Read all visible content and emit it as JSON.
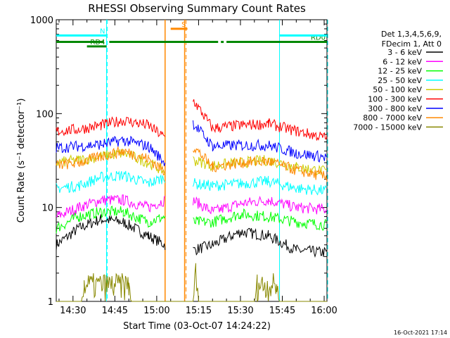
{
  "chart_data": {
    "type": "line",
    "title": "RHESSI Observing Summary Count Rates",
    "xlabel": "Start Time (03-Oct-07 14:24:22)",
    "ylabel": "Count Rate (s⁻¹ detector⁻¹)",
    "yscale": "log",
    "ylim": [
      1,
      1000
    ],
    "xlim": [
      "14:24",
      "16:01"
    ],
    "x_ticks": [
      "14:30",
      "14:45",
      "15:00",
      "15:15",
      "15:30",
      "15:45",
      "16:00"
    ],
    "y_ticks": [
      "1",
      "10",
      "100",
      "1000"
    ],
    "legend_header": [
      "Det 1,3,4,5,6,9,",
      "FDecim 1, Att 0"
    ],
    "legend_position": "right",
    "timestamp": "16-Oct-2021 17:14",
    "series": [
      {
        "name": "3 - 6 keV",
        "color": "#000000",
        "key": [
          [
            "14:24",
            4
          ],
          [
            "14:32",
            6
          ],
          [
            "14:40",
            7.5
          ],
          [
            "14:48",
            7
          ],
          [
            "14:57",
            5
          ],
          [
            "15:03",
            4
          ],
          [
            "15:10",
            null
          ],
          [
            "15:13",
            3.5
          ],
          [
            "15:20",
            4
          ],
          [
            "15:30",
            5.5
          ],
          [
            "15:40",
            5
          ],
          [
            "15:50",
            3.5
          ],
          [
            "16:01",
            3.3
          ]
        ]
      },
      {
        "name": "6 - 12 keV",
        "color": "#ff00ff",
        "key": [
          [
            "14:24",
            8
          ],
          [
            "14:32",
            10
          ],
          [
            "14:40",
            12
          ],
          [
            "14:48",
            12
          ],
          [
            "14:57",
            10
          ],
          [
            "15:03",
            12
          ],
          [
            "15:10",
            null
          ],
          [
            "15:13",
            12
          ],
          [
            "15:20",
            9
          ],
          [
            "15:30",
            11
          ],
          [
            "15:40",
            12
          ],
          [
            "15:50",
            10
          ],
          [
            "16:01",
            9.5
          ]
        ]
      },
      {
        "name": "12 - 25 keV",
        "color": "#00ff00",
        "key": [
          [
            "14:24",
            6
          ],
          [
            "14:32",
            8
          ],
          [
            "14:40",
            9
          ],
          [
            "14:48",
            9
          ],
          [
            "14:57",
            7
          ],
          [
            "15:03",
            8
          ],
          [
            "15:10",
            null
          ],
          [
            "15:13",
            7
          ],
          [
            "15:20",
            7
          ],
          [
            "15:30",
            8.5
          ],
          [
            "15:40",
            8
          ],
          [
            "15:50",
            7
          ],
          [
            "16:01",
            6.5
          ]
        ]
      },
      {
        "name": "25 - 50 keV",
        "color": "#00ffff",
        "key": [
          [
            "14:24",
            16
          ],
          [
            "14:32",
            17
          ],
          [
            "14:40",
            21
          ],
          [
            "14:48",
            22
          ],
          [
            "14:57",
            18
          ],
          [
            "15:03",
            21
          ],
          [
            "15:10",
            null
          ],
          [
            "15:13",
            18
          ],
          [
            "15:20",
            17
          ],
          [
            "15:30",
            18
          ],
          [
            "15:40",
            19
          ],
          [
            "15:50",
            16
          ],
          [
            "16:01",
            15
          ]
        ]
      },
      {
        "name": "50 - 100 keV",
        "color": "#cccc00",
        "key": [
          [
            "14:24",
            30
          ],
          [
            "14:32",
            32
          ],
          [
            "14:40",
            35
          ],
          [
            "14:48",
            38
          ],
          [
            "14:57",
            30
          ],
          [
            "15:03",
            24
          ],
          [
            "15:10",
            null
          ],
          [
            "15:13",
            32
          ],
          [
            "15:20",
            28
          ],
          [
            "15:30",
            30
          ],
          [
            "15:40",
            32
          ],
          [
            "15:50",
            27
          ],
          [
            "16:01",
            24
          ]
        ]
      },
      {
        "name": "100 - 300 keV",
        "color": "#ff0000",
        "key": [
          [
            "14:24",
            65
          ],
          [
            "14:32",
            68
          ],
          [
            "14:40",
            75
          ],
          [
            "14:48",
            85
          ],
          [
            "14:57",
            75
          ],
          [
            "15:03",
            55
          ],
          [
            "15:10",
            null
          ],
          [
            "15:13",
            140
          ],
          [
            "15:20",
            70
          ],
          [
            "15:30",
            75
          ],
          [
            "15:40",
            78
          ],
          [
            "15:50",
            65
          ],
          [
            "16:01",
            55
          ]
        ]
      },
      {
        "name": "300 - 800 keV",
        "color": "#0000ff",
        "key": [
          [
            "14:24",
            43
          ],
          [
            "14:32",
            45
          ],
          [
            "14:40",
            47
          ],
          [
            "14:48",
            52
          ],
          [
            "14:57",
            45
          ],
          [
            "15:03",
            30
          ],
          [
            "15:10",
            null
          ],
          [
            "15:13",
            80
          ],
          [
            "15:20",
            45
          ],
          [
            "15:30",
            46
          ],
          [
            "15:40",
            46
          ],
          [
            "15:50",
            38
          ],
          [
            "16:01",
            34
          ]
        ]
      },
      {
        "name": "800 - 7000 keV",
        "color": "#ff8800",
        "key": [
          [
            "14:24",
            28
          ],
          [
            "14:32",
            30
          ],
          [
            "14:40",
            35
          ],
          [
            "14:48",
            40
          ],
          [
            "14:57",
            33
          ],
          [
            "15:03",
            24
          ],
          [
            "15:10",
            null
          ],
          [
            "15:13",
            45
          ],
          [
            "15:20",
            27
          ],
          [
            "15:30",
            30
          ],
          [
            "15:40",
            31
          ],
          [
            "15:50",
            25
          ],
          [
            "16:01",
            21
          ]
        ]
      },
      {
        "name": "7000 - 15000 keV",
        "color": "#888800",
        "key": [
          [
            "14:24",
            1
          ],
          [
            "14:33",
            1
          ],
          [
            "14:34",
            2
          ],
          [
            "14:50",
            2
          ],
          [
            "14:51",
            1
          ],
          [
            "15:13",
            1
          ],
          [
            "15:14",
            3
          ],
          [
            "15:15",
            1
          ],
          [
            "15:35",
            1
          ],
          [
            "15:36",
            2
          ],
          [
            "15:43",
            2
          ],
          [
            "15:44",
            1
          ],
          [
            "16:01",
            1
          ]
        ]
      }
    ],
    "annotations": {
      "flags": [
        {
          "label": "N",
          "color": "#00ffff",
          "start": "14:24",
          "end": "14:42",
          "level": 680
        },
        {
          "label": "RD0",
          "color": "#008800",
          "start": "14:24",
          "end": "16:01",
          "level": 580,
          "breaks": [
            [
              "14:41",
              "14:43"
            ],
            [
              "15:22",
              "15:23"
            ],
            [
              "15:24",
              "15:25"
            ]
          ]
        },
        {
          "label": "RD4",
          "color": "#008800",
          "start": "14:35",
          "end": "14:42",
          "level": 520
        },
        {
          "label": "S",
          "color": "#ff8800",
          "start": "15:05",
          "end": "15:11",
          "level": 800
        },
        {
          "label": "",
          "color": "#00ffff",
          "start": "15:44",
          "end": "16:01",
          "level": 680
        }
      ],
      "cyan_lines": [
        "14:42",
        "15:44"
      ],
      "cyan_dashed": [
        "14:42",
        "16:01"
      ],
      "orange_lines": [
        "15:03",
        "15:10"
      ],
      "orange_dashed": [
        "15:10"
      ]
    }
  }
}
